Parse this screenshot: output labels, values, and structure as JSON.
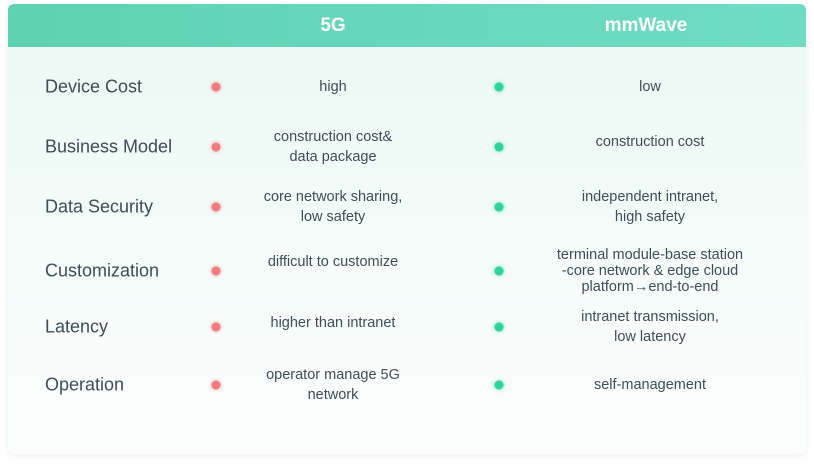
{
  "header": {
    "col_5g": "5G",
    "col_mmwave": "mmWave"
  },
  "rows": [
    {
      "label": "Device Cost",
      "g5": [
        "high"
      ],
      "mm": [
        "low"
      ]
    },
    {
      "label": "Business Model",
      "g5": [
        "construction cost&",
        "data package"
      ],
      "mm": [
        "construction cost"
      ]
    },
    {
      "label": "Data Security",
      "g5": [
        "core network sharing,",
        "low safety"
      ],
      "mm": [
        "independent intranet,",
        "high safety"
      ]
    },
    {
      "label": "Customization",
      "g5": [
        "difficult to customize"
      ],
      "mm": [
        "terminal module-base station",
        "-core network & edge cloud",
        "platform→end-to-end"
      ]
    },
    {
      "label": "Latency",
      "g5": [
        "higher than intranet"
      ],
      "mm": [
        "intranet transmission,",
        "low latency"
      ]
    },
    {
      "label": "Operation",
      "g5": [
        "operator manage 5G",
        "network"
      ],
      "mm": [
        "self-management"
      ]
    }
  ],
  "colors": {
    "header": "#66d6bb",
    "bad_dot": "#f07a82",
    "good_dot": "#2ed29c",
    "text": "#3f4d57"
  }
}
